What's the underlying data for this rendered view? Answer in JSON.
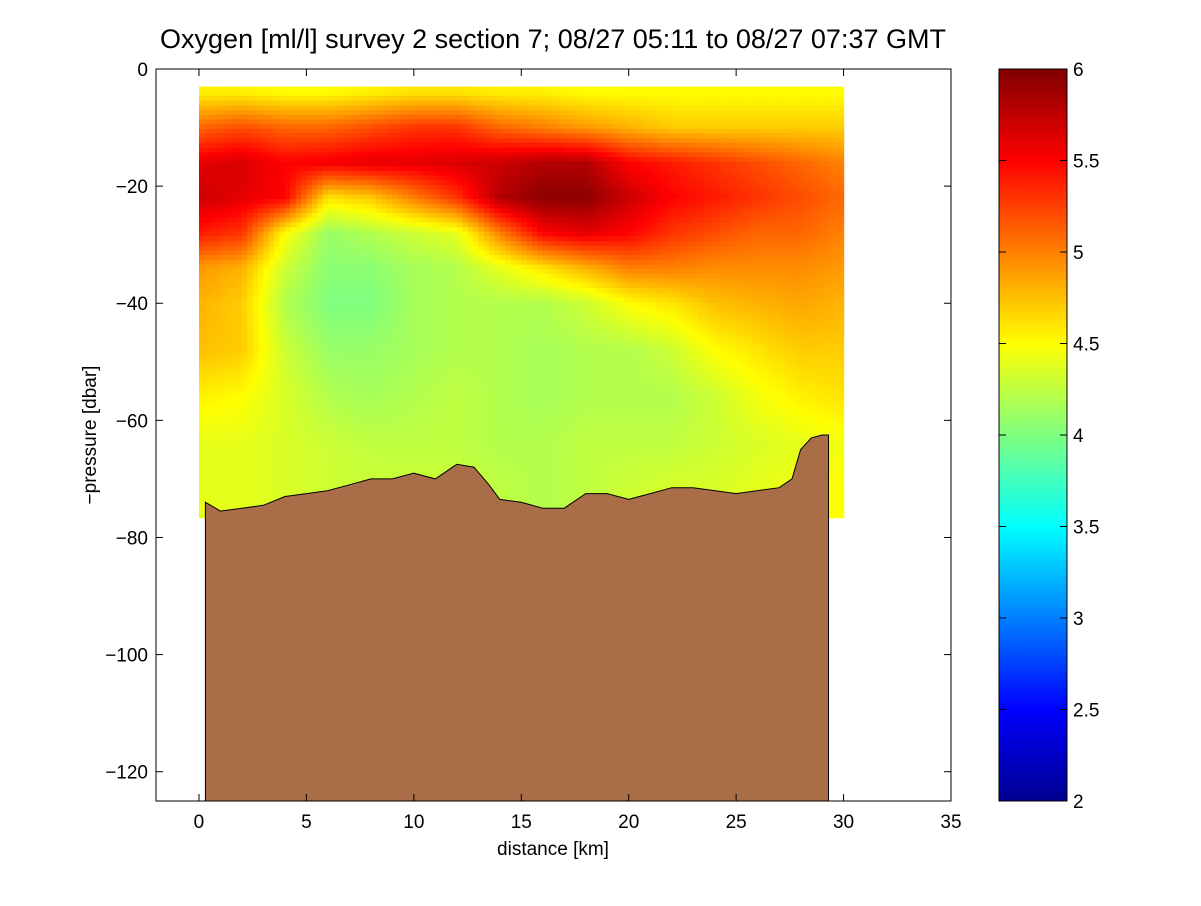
{
  "chart_data": {
    "type": "heatmap",
    "title": "Oxygen [ml/l] survey 2 section 7; 08/27 05:11 to 08/27 07:37 GMT",
    "xlabel": "distance [km]",
    "ylabel": "−pressure [dbar]",
    "xlim": [
      -2,
      35
    ],
    "ylim": [
      -125,
      0
    ],
    "x_ticks": [
      0,
      5,
      10,
      15,
      20,
      25,
      30,
      35
    ],
    "x_tick_labels": [
      "0",
      "5",
      "10",
      "15",
      "20",
      "25",
      "30",
      "35"
    ],
    "y_ticks": [
      0,
      -20,
      -40,
      -60,
      -80,
      -100,
      -120
    ],
    "y_tick_labels": [
      "0",
      "−20",
      "−40",
      "−60",
      "−80",
      "−100",
      "−120"
    ],
    "colorbar": {
      "range": [
        2,
        6
      ],
      "colormap": "jet",
      "ticks": [
        2,
        2.5,
        3,
        3.5,
        4,
        4.5,
        5,
        5.5,
        6
      ],
      "tick_labels": [
        "2",
        "2.5",
        "3",
        "3.5",
        "4",
        "4.5",
        "5",
        "5.5",
        "6"
      ]
    },
    "grid": false,
    "data_extent_x": [
      0,
      29.8
    ],
    "data_top": -3,
    "oxygen_field": {
      "description_units": "ml/l",
      "x": [
        0,
        2,
        4,
        6,
        8,
        10,
        12,
        14,
        16,
        18,
        20,
        22,
        24,
        26,
        28,
        29.8
      ],
      "depth": [
        -4,
        -10,
        -16,
        -22,
        -28,
        -34,
        -40,
        -48,
        -56,
        -64,
        -72
      ],
      "values": [
        [
          4.55,
          4.55,
          4.5,
          4.5,
          4.55,
          4.6,
          4.6,
          4.55,
          4.55,
          4.5,
          4.5,
          4.5,
          4.5,
          4.5,
          4.5,
          4.5
        ],
        [
          5.1,
          5.2,
          5.1,
          5.1,
          5.2,
          5.3,
          5.3,
          5.1,
          5.0,
          4.9,
          4.8,
          4.7,
          4.7,
          4.7,
          4.7,
          4.7
        ],
        [
          5.6,
          5.65,
          5.5,
          5.55,
          5.6,
          5.6,
          5.65,
          5.7,
          5.8,
          5.8,
          5.5,
          5.4,
          5.3,
          5.2,
          5.1,
          5.0
        ],
        [
          5.7,
          5.6,
          5.5,
          4.6,
          4.7,
          5.0,
          5.3,
          5.8,
          5.95,
          5.95,
          5.7,
          5.5,
          5.4,
          5.3,
          5.2,
          5.1
        ],
        [
          5.4,
          5.3,
          4.5,
          4.1,
          4.2,
          4.3,
          4.4,
          5.0,
          5.5,
          5.6,
          5.5,
          5.3,
          5.2,
          5.1,
          5.1,
          5.0
        ],
        [
          4.9,
          4.8,
          4.3,
          4.05,
          4.05,
          4.15,
          4.2,
          4.4,
          4.6,
          4.8,
          5.0,
          5.0,
          4.95,
          4.95,
          4.95,
          4.9
        ],
        [
          4.8,
          4.7,
          4.2,
          4.0,
          4.0,
          4.15,
          4.2,
          4.2,
          4.2,
          4.3,
          4.5,
          4.6,
          4.75,
          4.8,
          4.85,
          4.8
        ],
        [
          4.75,
          4.7,
          4.3,
          4.1,
          4.1,
          4.15,
          4.2,
          4.2,
          4.15,
          4.2,
          4.2,
          4.3,
          4.5,
          4.6,
          4.7,
          4.7
        ],
        [
          4.55,
          4.5,
          4.35,
          4.2,
          4.15,
          4.2,
          4.25,
          4.2,
          4.15,
          4.2,
          4.2,
          4.2,
          4.3,
          4.45,
          4.55,
          4.6
        ],
        [
          4.4,
          4.4,
          4.35,
          4.3,
          4.25,
          4.25,
          4.25,
          4.2,
          4.2,
          4.25,
          4.25,
          4.25,
          4.3,
          4.35,
          4.4,
          4.45
        ],
        [
          4.4,
          4.4,
          4.35,
          4.3,
          4.3,
          4.3,
          4.3,
          4.25,
          4.2,
          4.25,
          4.3,
          4.35,
          4.35,
          4.4,
          4.45,
          4.5
        ]
      ]
    },
    "bathymetry": {
      "x": [
        0.3,
        1,
        2,
        3,
        4,
        5,
        6,
        7,
        8,
        9,
        10,
        11,
        12,
        12.8,
        13.5,
        14,
        15,
        16,
        17,
        18,
        19,
        20,
        21,
        22,
        23,
        24,
        25,
        26,
        27,
        27.6,
        28,
        28.5,
        29,
        29.3
      ],
      "depth": [
        -74,
        -75.5,
        -75,
        -74.5,
        -73,
        -72.5,
        -72,
        -71,
        -70,
        -70,
        -69,
        -70,
        -67.5,
        -68,
        -71,
        -73.5,
        -74,
        -75,
        -75,
        -72.5,
        -72.5,
        -73.5,
        -72.5,
        -71.5,
        -71.5,
        -72,
        -72.5,
        -72,
        -71.5,
        -70,
        -65,
        -63,
        -62.5,
        -62.5
      ],
      "color": "#a96e48"
    }
  }
}
